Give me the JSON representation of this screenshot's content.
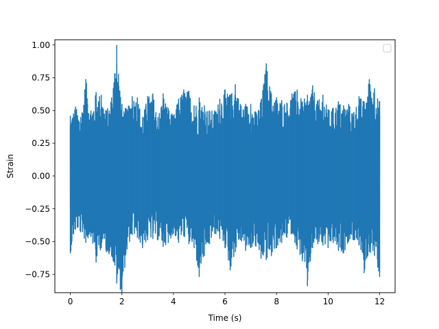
{
  "chart_data": {
    "type": "line",
    "title": "",
    "xlabel": "Time (s)",
    "ylabel": "Strain",
    "xlim": [
      -0.6,
      12.6
    ],
    "ylim": [
      -0.89,
      1.04
    ],
    "x_ticks": [
      0,
      2,
      4,
      6,
      8,
      10,
      12
    ],
    "x_tick_labels": [
      "0",
      "2",
      "4",
      "6",
      "8",
      "10",
      "12"
    ],
    "y_ticks": [
      -0.75,
      -0.5,
      -0.25,
      0.0,
      0.25,
      0.5,
      0.75,
      1.0
    ],
    "y_tick_labels": [
      "−0.75",
      "−0.50",
      "−0.25",
      "0.00",
      "0.25",
      "0.50",
      "0.75",
      "1.00"
    ],
    "grid": false,
    "legend": {
      "position": "top-right",
      "entries": []
    },
    "series": [
      {
        "color": "#1f77b4",
        "x_range": [
          0,
          12
        ],
        "envelope_upper": [
          0.46,
          0.53,
          0.45,
          0.74,
          0.5,
          0.64,
          0.62,
          0.5,
          0.6,
          1.0,
          0.55,
          0.51,
          0.61,
          0.6,
          0.45,
          0.61,
          0.63,
          0.45,
          0.63,
          0.52,
          0.46,
          0.59,
          0.66,
          0.65,
          0.54,
          0.6,
          0.54,
          0.5,
          0.5,
          0.59,
          0.66,
          0.62,
          0.7,
          0.55,
          0.55,
          0.55,
          0.49,
          0.58,
          0.86,
          0.63,
          0.6,
          0.58,
          0.56,
          0.63,
          0.66,
          0.57,
          0.62,
          0.69,
          0.57,
          0.62,
          0.51,
          0.52,
          0.57,
          0.54,
          0.55,
          0.49,
          0.61,
          0.57,
          0.74,
          0.67,
          0.57
        ],
        "envelope_lower": [
          -0.59,
          -0.41,
          -0.43,
          -0.51,
          -0.46,
          -0.66,
          -0.55,
          -0.58,
          -0.61,
          -0.82,
          -0.89,
          -0.56,
          -0.45,
          -0.47,
          -0.55,
          -0.49,
          -0.48,
          -0.49,
          -0.54,
          -0.51,
          -0.44,
          -0.51,
          -0.46,
          -0.52,
          -0.55,
          -0.77,
          -0.61,
          -0.52,
          -0.44,
          -0.48,
          -0.55,
          -0.72,
          -0.58,
          -0.49,
          -0.57,
          -0.55,
          -0.54,
          -0.63,
          -0.64,
          -0.61,
          -0.55,
          -0.51,
          -0.47,
          -0.44,
          -0.56,
          -0.65,
          -0.84,
          -0.55,
          -0.52,
          -0.53,
          -0.55,
          -0.51,
          -0.57,
          -0.59,
          -0.5,
          -0.49,
          -0.53,
          -0.74,
          -0.58,
          -0.61,
          -0.77
        ]
      }
    ]
  }
}
